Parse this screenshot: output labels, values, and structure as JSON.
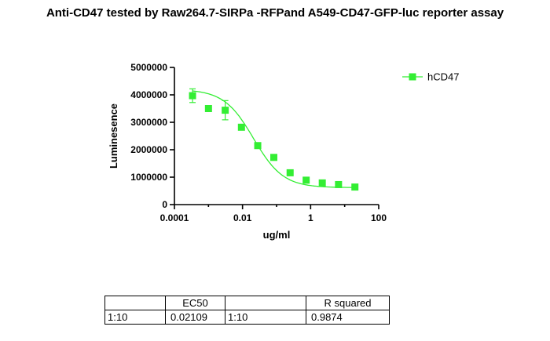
{
  "title": "Anti-CD47 tested by Raw264.7-SIRPa -RFPand A549-CD47-GFP-luc reporter assay",
  "chart_data": {
    "type": "scatter",
    "title": "Anti-CD47 tested by Raw264.7-SIRPa -RFPand A549-CD47-GFP-luc reporter assay",
    "xlabel": "ug/ml",
    "ylabel": "Luminesence",
    "xscale": "log",
    "xlim": [
      0.0001,
      100
    ],
    "ylim": [
      0,
      5000000
    ],
    "xticks": [
      0.0001,
      0.01,
      1,
      100
    ],
    "xtick_labels": [
      "0.0001",
      "0.01",
      "1",
      "100"
    ],
    "yticks": [
      0,
      1000000,
      2000000,
      3000000,
      4000000,
      5000000
    ],
    "ytick_labels": [
      "0",
      "1000000",
      "2000000",
      "3000000",
      "4000000",
      "5000000"
    ],
    "grid": false,
    "legend_position": "top-right",
    "color": "#33ee33",
    "series": [
      {
        "name": "hCD47",
        "x": [
          0.00034,
          0.001,
          0.0031,
          0.0093,
          0.028,
          0.083,
          0.25,
          0.74,
          2.2,
          6.6,
          20
        ],
        "y": [
          3970000,
          3500000,
          3440000,
          2820000,
          2150000,
          1720000,
          1160000,
          890000,
          790000,
          730000,
          640000
        ],
        "err": [
          250000,
          0,
          350000,
          0,
          0,
          100000,
          0,
          0,
          100000,
          0,
          100000
        ],
        "fit": {
          "bottom": 620000,
          "top": 4200000,
          "ec50": 0.02109,
          "hill": 1.0
        }
      }
    ]
  },
  "results_table": {
    "header": [
      "",
      "EC50",
      "",
      "R squared"
    ],
    "row": [
      "1:10",
      "0.02109",
      "1:10",
      "0.9874"
    ]
  }
}
